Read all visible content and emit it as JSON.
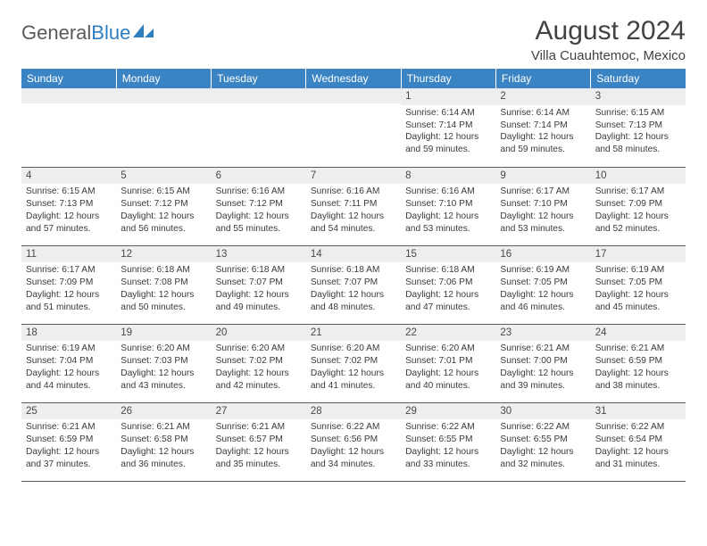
{
  "logo": {
    "text1": "General",
    "text2": "Blue"
  },
  "title": "August 2024",
  "location": "Villa Cuauhtemoc, Mexico",
  "colors": {
    "header_bg": "#3b84c4",
    "header_text": "#ffffff",
    "daynum_bg": "#eceeef",
    "border": "#5c5c5c",
    "logo_gray": "#5a5a5a",
    "logo_blue": "#2f7fc1"
  },
  "weekdays": [
    "Sunday",
    "Monday",
    "Tuesday",
    "Wednesday",
    "Thursday",
    "Friday",
    "Saturday"
  ],
  "grid": [
    [
      null,
      null,
      null,
      null,
      {
        "n": "1",
        "sr": "6:14 AM",
        "ss": "7:14 PM",
        "dl": "12 hours and 59 minutes."
      },
      {
        "n": "2",
        "sr": "6:14 AM",
        "ss": "7:14 PM",
        "dl": "12 hours and 59 minutes."
      },
      {
        "n": "3",
        "sr": "6:15 AM",
        "ss": "7:13 PM",
        "dl": "12 hours and 58 minutes."
      }
    ],
    [
      {
        "n": "4",
        "sr": "6:15 AM",
        "ss": "7:13 PM",
        "dl": "12 hours and 57 minutes."
      },
      {
        "n": "5",
        "sr": "6:15 AM",
        "ss": "7:12 PM",
        "dl": "12 hours and 56 minutes."
      },
      {
        "n": "6",
        "sr": "6:16 AM",
        "ss": "7:12 PM",
        "dl": "12 hours and 55 minutes."
      },
      {
        "n": "7",
        "sr": "6:16 AM",
        "ss": "7:11 PM",
        "dl": "12 hours and 54 minutes."
      },
      {
        "n": "8",
        "sr": "6:16 AM",
        "ss": "7:10 PM",
        "dl": "12 hours and 53 minutes."
      },
      {
        "n": "9",
        "sr": "6:17 AM",
        "ss": "7:10 PM",
        "dl": "12 hours and 53 minutes."
      },
      {
        "n": "10",
        "sr": "6:17 AM",
        "ss": "7:09 PM",
        "dl": "12 hours and 52 minutes."
      }
    ],
    [
      {
        "n": "11",
        "sr": "6:17 AM",
        "ss": "7:09 PM",
        "dl": "12 hours and 51 minutes."
      },
      {
        "n": "12",
        "sr": "6:18 AM",
        "ss": "7:08 PM",
        "dl": "12 hours and 50 minutes."
      },
      {
        "n": "13",
        "sr": "6:18 AM",
        "ss": "7:07 PM",
        "dl": "12 hours and 49 minutes."
      },
      {
        "n": "14",
        "sr": "6:18 AM",
        "ss": "7:07 PM",
        "dl": "12 hours and 48 minutes."
      },
      {
        "n": "15",
        "sr": "6:18 AM",
        "ss": "7:06 PM",
        "dl": "12 hours and 47 minutes."
      },
      {
        "n": "16",
        "sr": "6:19 AM",
        "ss": "7:05 PM",
        "dl": "12 hours and 46 minutes."
      },
      {
        "n": "17",
        "sr": "6:19 AM",
        "ss": "7:05 PM",
        "dl": "12 hours and 45 minutes."
      }
    ],
    [
      {
        "n": "18",
        "sr": "6:19 AM",
        "ss": "7:04 PM",
        "dl": "12 hours and 44 minutes."
      },
      {
        "n": "19",
        "sr": "6:20 AM",
        "ss": "7:03 PM",
        "dl": "12 hours and 43 minutes."
      },
      {
        "n": "20",
        "sr": "6:20 AM",
        "ss": "7:02 PM",
        "dl": "12 hours and 42 minutes."
      },
      {
        "n": "21",
        "sr": "6:20 AM",
        "ss": "7:02 PM",
        "dl": "12 hours and 41 minutes."
      },
      {
        "n": "22",
        "sr": "6:20 AM",
        "ss": "7:01 PM",
        "dl": "12 hours and 40 minutes."
      },
      {
        "n": "23",
        "sr": "6:21 AM",
        "ss": "7:00 PM",
        "dl": "12 hours and 39 minutes."
      },
      {
        "n": "24",
        "sr": "6:21 AM",
        "ss": "6:59 PM",
        "dl": "12 hours and 38 minutes."
      }
    ],
    [
      {
        "n": "25",
        "sr": "6:21 AM",
        "ss": "6:59 PM",
        "dl": "12 hours and 37 minutes."
      },
      {
        "n": "26",
        "sr": "6:21 AM",
        "ss": "6:58 PM",
        "dl": "12 hours and 36 minutes."
      },
      {
        "n": "27",
        "sr": "6:21 AM",
        "ss": "6:57 PM",
        "dl": "12 hours and 35 minutes."
      },
      {
        "n": "28",
        "sr": "6:22 AM",
        "ss": "6:56 PM",
        "dl": "12 hours and 34 minutes."
      },
      {
        "n": "29",
        "sr": "6:22 AM",
        "ss": "6:55 PM",
        "dl": "12 hours and 33 minutes."
      },
      {
        "n": "30",
        "sr": "6:22 AM",
        "ss": "6:55 PM",
        "dl": "12 hours and 32 minutes."
      },
      {
        "n": "31",
        "sr": "6:22 AM",
        "ss": "6:54 PM",
        "dl": "12 hours and 31 minutes."
      }
    ]
  ],
  "labels": {
    "sunrise": "Sunrise:",
    "sunset": "Sunset:",
    "daylight": "Daylight:"
  }
}
